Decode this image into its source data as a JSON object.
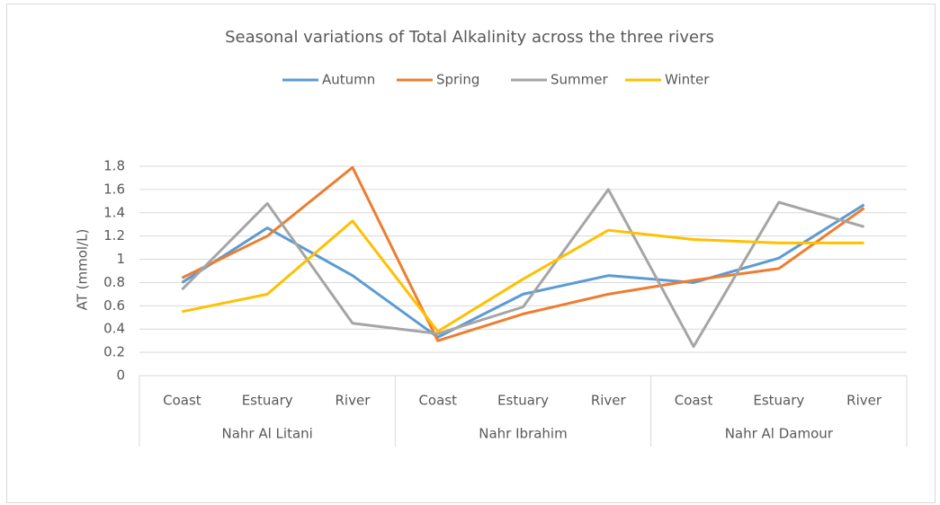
{
  "chart_data": {
    "type": "line",
    "title": "Seasonal variations of Total Alkalinity across the three rivers",
    "y_label": "AT (mmol/L)",
    "groups": [
      {
        "name": "Nahr Al Litani",
        "categories": [
          "Coast",
          "Estuary",
          "River"
        ]
      },
      {
        "name": "Nahr Ibrahim",
        "categories": [
          "Coast",
          "Estuary",
          "River"
        ]
      },
      {
        "name": "Nahr Al Damour",
        "categories": [
          "Coast",
          "Estuary",
          "River"
        ]
      }
    ],
    "series": [
      {
        "name": "Autumn",
        "color": "#5b9bd5",
        "values": [
          0.8,
          1.27,
          0.86,
          0.33,
          0.7,
          0.86,
          0.8,
          1.01,
          1.47
        ]
      },
      {
        "name": "Spring",
        "color": "#ed7d31",
        "values": [
          0.84,
          1.2,
          1.79,
          0.3,
          0.53,
          0.7,
          0.82,
          0.92,
          1.44
        ]
      },
      {
        "name": "Summer",
        "color": "#a5a5a5",
        "values": [
          0.74,
          1.48,
          0.45,
          0.36,
          0.59,
          1.6,
          0.25,
          1.49,
          1.28
        ]
      },
      {
        "name": "Winter",
        "color": "#ffc000",
        "values": [
          0.55,
          0.7,
          1.33,
          0.38,
          0.83,
          1.25,
          1.17,
          1.14,
          1.14
        ]
      }
    ],
    "ylim": [
      0,
      1.8
    ],
    "yticks": [
      0,
      0.2,
      0.4,
      0.6,
      0.8,
      1,
      1.2,
      1.4,
      1.6,
      1.8
    ],
    "grid": true,
    "legend": "top"
  }
}
